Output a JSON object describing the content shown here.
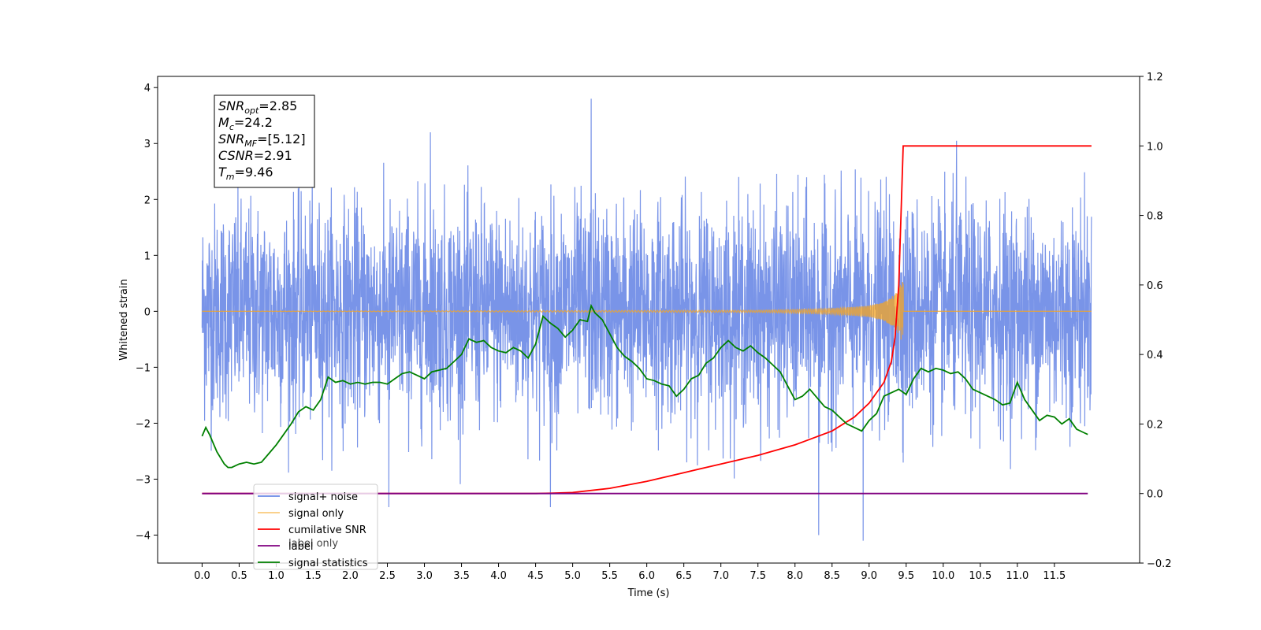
{
  "chart_data": {
    "type": "line",
    "xlabel": "Time (s)",
    "ylabel_left": "Whitened strain",
    "ylabel_right": "",
    "xlim": [
      -0.6,
      12.65
    ],
    "ylim_left": [
      -4.5,
      4.2
    ],
    "ylim_right": [
      -0.2,
      1.2
    ],
    "x_ticks": [
      "0.0",
      "0.5",
      "1.0",
      "1.5",
      "2.0",
      "2.5",
      "3.0",
      "3.5",
      "4.0",
      "4.5",
      "5.0",
      "5.5",
      "6.0",
      "6.5",
      "7.0",
      "7.5",
      "8.0",
      "8.5",
      "9.0",
      "9.5",
      "10.0",
      "10.5",
      "11.0",
      "11.5"
    ],
    "left_ticks": [
      "−4",
      "−3",
      "−2",
      "−1",
      "0",
      "1",
      "2",
      "3",
      "4"
    ],
    "right_ticks": [
      "−0.2",
      "0.0",
      "0.2",
      "0.4",
      "0.6",
      "0.8",
      "1.0",
      "1.2"
    ],
    "grid": false,
    "legend_position": "lower-left",
    "annotation": {
      "snr_opt": {
        "sym": "SNR",
        "sub": "opt",
        "value": "=2.85"
      },
      "mc": {
        "sym": "M",
        "sub": "c",
        "value": "=24.2"
      },
      "snr_mf": {
        "sym": "SNR",
        "sub": "MF",
        "value": "=[5.12]"
      },
      "csnr": {
        "sym": "CSNR",
        "sub": "",
        "value": "=2.91"
      },
      "tm": {
        "sym": "T",
        "sub": "m",
        "value": "=9.46"
      }
    },
    "series": [
      {
        "name": "signal+ noise",
        "axis": "left",
        "color": "#6a88e6",
        "description": "whitened noise, roughly normal, std about 1, spikes up to 3.8 and down to -4.1",
        "x_range": [
          0.0,
          12.0
        ],
        "notable_extrema": [
          [
            5.25,
            3.8
          ],
          [
            10.18,
            3.05
          ],
          [
            3.08,
            3.2
          ],
          [
            8.32,
            -4.0
          ],
          [
            8.92,
            -4.1
          ],
          [
            2.52,
            -3.5
          ],
          [
            4.7,
            -3.5
          ]
        ]
      },
      {
        "name": "signal only",
        "axis": "left",
        "color": "#f5a623",
        "description": "chirp, flat near 0 then growing oscillation up to 9.46 s",
        "x": [
          0.0,
          7.5,
          8.5,
          9.0,
          9.2,
          9.35,
          9.43,
          9.46,
          12.0
        ],
        "amplitude": [
          0.0,
          0.02,
          0.05,
          0.1,
          0.17,
          0.3,
          0.5,
          0.6,
          0.0
        ]
      },
      {
        "name": "cumilative SNR",
        "axis": "right",
        "color": "#ff0000",
        "x": [
          0.0,
          4.5,
          4.7,
          5.0,
          5.5,
          6.0,
          6.5,
          7.0,
          7.5,
          8.0,
          8.5,
          8.8,
          9.0,
          9.2,
          9.3,
          9.35,
          9.4,
          9.43,
          9.46,
          12.0
        ],
        "values": [
          0.0,
          0.0,
          0.001,
          0.003,
          0.015,
          0.035,
          0.06,
          0.085,
          0.11,
          0.14,
          0.18,
          0.22,
          0.26,
          0.32,
          0.38,
          0.45,
          0.6,
          0.8,
          1.0,
          1.0
        ]
      },
      {
        "name": "label",
        "axis": "right",
        "color": "#800080",
        "x": [
          0.0,
          11.95
        ],
        "values": [
          0.0,
          0.0
        ]
      },
      {
        "name": "signal statistics",
        "axis": "right",
        "color": "#008000",
        "x": [
          0.0,
          0.05,
          0.1,
          0.2,
          0.3,
          0.35,
          0.4,
          0.5,
          0.6,
          0.7,
          0.8,
          0.9,
          1.0,
          1.1,
          1.2,
          1.3,
          1.4,
          1.5,
          1.6,
          1.7,
          1.8,
          1.9,
          2.0,
          2.1,
          2.2,
          2.3,
          2.4,
          2.5,
          2.6,
          2.7,
          2.8,
          2.9,
          3.0,
          3.1,
          3.2,
          3.3,
          3.4,
          3.5,
          3.6,
          3.7,
          3.8,
          3.9,
          4.0,
          4.1,
          4.2,
          4.3,
          4.4,
          4.5,
          4.6,
          4.7,
          4.8,
          4.9,
          5.0,
          5.1,
          5.2,
          5.25,
          5.3,
          5.4,
          5.5,
          5.6,
          5.7,
          5.8,
          5.9,
          6.0,
          6.1,
          6.2,
          6.3,
          6.4,
          6.5,
          6.6,
          6.7,
          6.8,
          6.9,
          7.0,
          7.1,
          7.2,
          7.3,
          7.4,
          7.5,
          7.6,
          7.7,
          7.8,
          7.9,
          8.0,
          8.1,
          8.2,
          8.3,
          8.4,
          8.5,
          8.6,
          8.7,
          8.8,
          8.9,
          9.0,
          9.1,
          9.2,
          9.3,
          9.4,
          9.5,
          9.6,
          9.7,
          9.8,
          9.9,
          10.0,
          10.1,
          10.2,
          10.3,
          10.4,
          10.5,
          10.6,
          10.7,
          10.8,
          10.9,
          11.0,
          11.1,
          11.2,
          11.3,
          11.4,
          11.5,
          11.6,
          11.7,
          11.8,
          11.9,
          11.95
        ],
        "values": [
          0.165,
          0.19,
          0.17,
          0.12,
          0.085,
          0.075,
          0.075,
          0.085,
          0.09,
          0.085,
          0.09,
          0.115,
          0.14,
          0.17,
          0.2,
          0.235,
          0.25,
          0.24,
          0.27,
          0.335,
          0.32,
          0.325,
          0.315,
          0.32,
          0.315,
          0.32,
          0.32,
          0.315,
          0.33,
          0.345,
          0.35,
          0.34,
          0.33,
          0.35,
          0.355,
          0.36,
          0.38,
          0.4,
          0.445,
          0.435,
          0.44,
          0.42,
          0.41,
          0.405,
          0.42,
          0.41,
          0.39,
          0.43,
          0.51,
          0.49,
          0.475,
          0.45,
          0.47,
          0.5,
          0.495,
          0.54,
          0.52,
          0.5,
          0.46,
          0.42,
          0.395,
          0.38,
          0.36,
          0.33,
          0.325,
          0.315,
          0.31,
          0.28,
          0.3,
          0.33,
          0.34,
          0.375,
          0.39,
          0.42,
          0.44,
          0.42,
          0.41,
          0.425,
          0.405,
          0.39,
          0.37,
          0.35,
          0.31,
          0.27,
          0.28,
          0.3,
          0.275,
          0.25,
          0.24,
          0.22,
          0.2,
          0.19,
          0.18,
          0.21,
          0.23,
          0.28,
          0.29,
          0.3,
          0.285,
          0.33,
          0.36,
          0.35,
          0.36,
          0.355,
          0.345,
          0.35,
          0.33,
          0.3,
          0.29,
          0.28,
          0.27,
          0.255,
          0.26,
          0.32,
          0.27,
          0.24,
          0.21,
          0.225,
          0.22,
          0.2,
          0.215,
          0.185,
          0.175,
          0.17
        ]
      }
    ],
    "legend_ghost_text": "label only"
  }
}
